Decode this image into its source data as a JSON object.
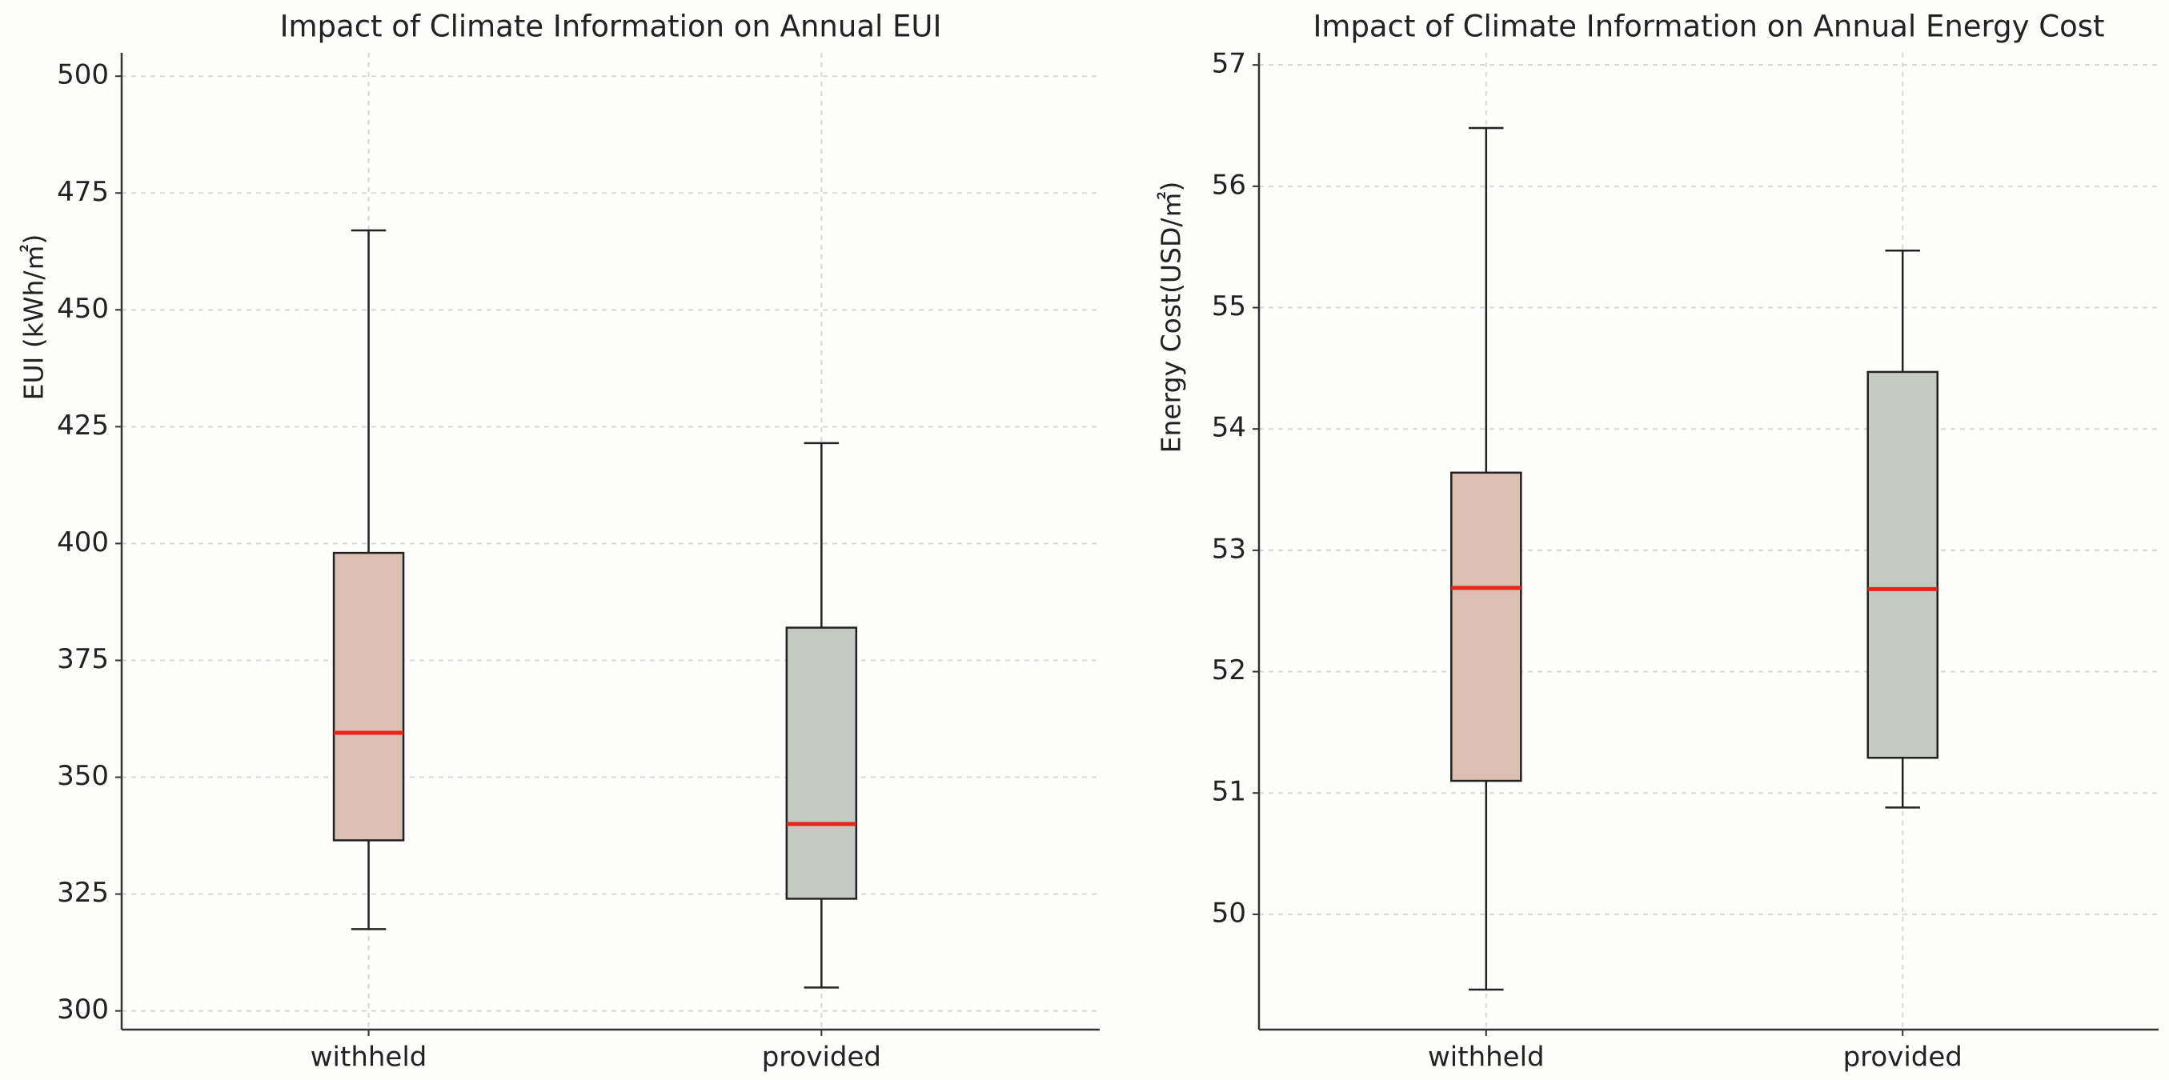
{
  "chart_data": [
    {
      "type": "box",
      "title": "Impact of Climate Information on Annual EUI",
      "y_label": "EUI (kWh/㎡)",
      "categories": [
        "withheld",
        "provided"
      ],
      "boxes": [
        {
          "low": 317.5,
          "q1": 336.5,
          "median": 359.5,
          "q3": 398,
          "high": 467
        },
        {
          "low": 305,
          "q1": 324,
          "median": 340,
          "q3": 382,
          "high": 421.5
        }
      ],
      "colors": [
        "#dbbfb0",
        "#c4c9c2"
      ],
      "median_color": "#e8231a",
      "ylim": [
        296,
        505
      ],
      "yticks": [
        300,
        325,
        350,
        375,
        400,
        425,
        450,
        475,
        500
      ],
      "grid": true
    },
    {
      "type": "box",
      "title": "Impact of Climate Information on Annual Energy Cost",
      "y_label": "Energy Cost(USD/㎡)",
      "categories": [
        "withheld",
        "provided"
      ],
      "boxes": [
        {
          "low": 49.38,
          "q1": 51.1,
          "median": 52.69,
          "q3": 53.64,
          "high": 56.48
        },
        {
          "low": 50.88,
          "q1": 51.29,
          "median": 52.68,
          "q3": 54.47,
          "high": 55.47
        }
      ],
      "colors": [
        "#dbbfb0",
        "#c4c9c2"
      ],
      "median_color": "#e8231a",
      "ylim": [
        49.05,
        57.1
      ],
      "yticks": [
        50,
        51,
        52,
        53,
        54,
        55,
        56,
        57
      ],
      "grid": true
    }
  ]
}
